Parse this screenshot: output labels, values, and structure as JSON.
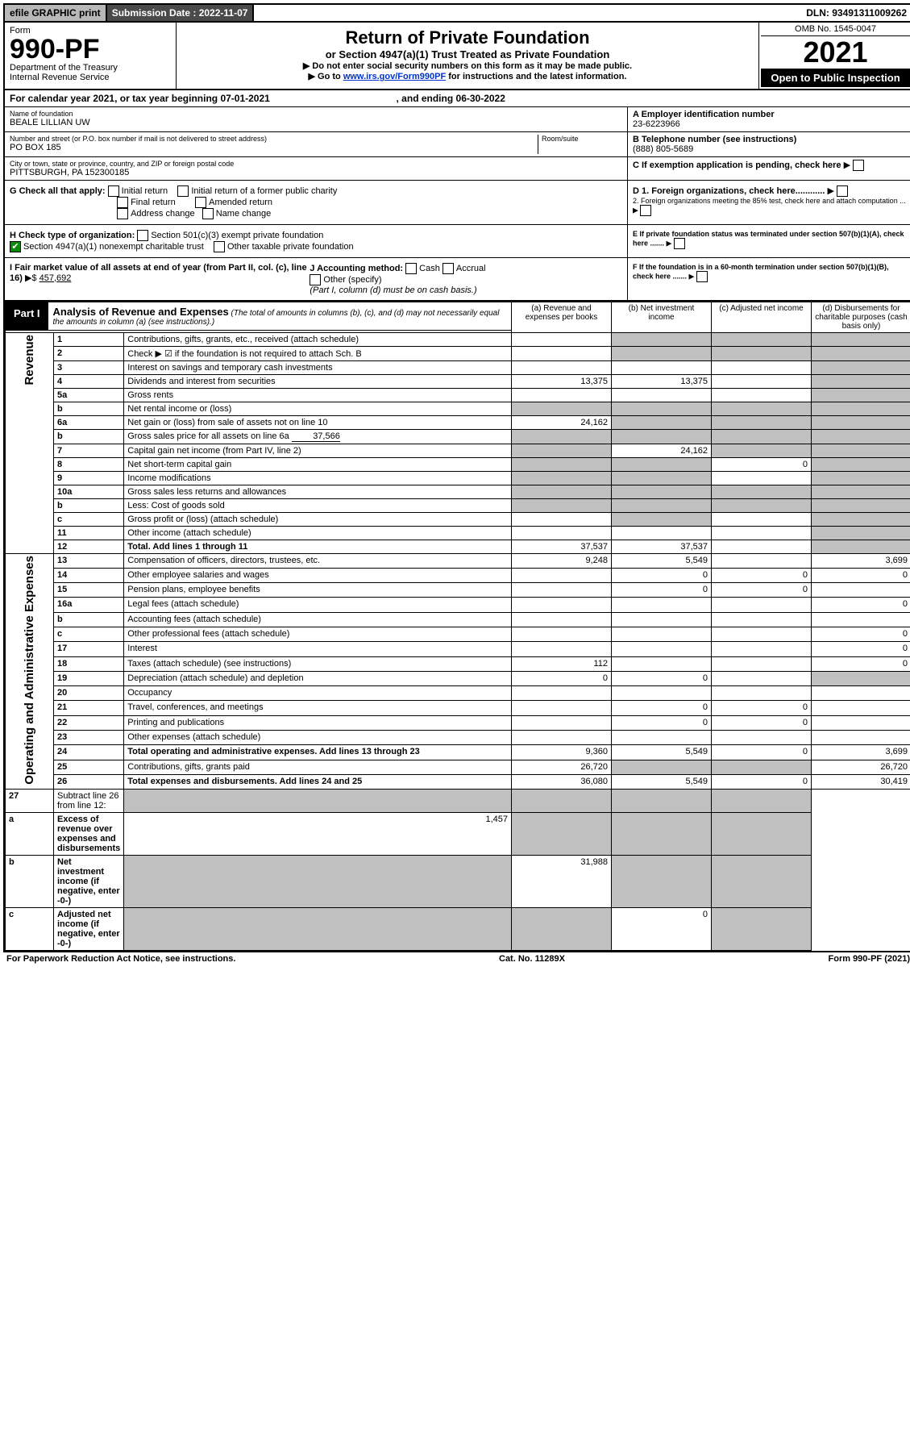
{
  "topbar": {
    "efile": "efile GRAPHIC print",
    "submission_label": "Submission Date : 2022-11-07",
    "dln": "DLN: 93491311009262"
  },
  "header": {
    "form_word": "Form",
    "form_no": "990-PF",
    "dept": "Department of the Treasury",
    "irs": "Internal Revenue Service",
    "title": "Return of Private Foundation",
    "subtitle": "or Section 4947(a)(1) Trust Treated as Private Foundation",
    "instr1": "▶ Do not enter social security numbers on this form as it may be made public.",
    "instr2_pre": "▶ Go to ",
    "instr2_link": "www.irs.gov/Form990PF",
    "instr2_post": " for instructions and the latest information.",
    "omb": "OMB No. 1545-0047",
    "year": "2021",
    "open": "Open to Public Inspection"
  },
  "calrow": {
    "text_a": "For calendar year 2021, or tax year beginning 07-01-2021",
    "text_b": ", and ending 06-30-2022"
  },
  "identity": {
    "name_label": "Name of foundation",
    "name": "BEALE LILLIAN UW",
    "ein_label": "A Employer identification number",
    "ein": "23-6223966",
    "addr_label": "Number and street (or P.O. box number if mail is not delivered to street address)",
    "addr": "PO BOX 185",
    "room_label": "Room/suite",
    "tel_label": "B Telephone number (see instructions)",
    "tel": "(888) 805-5689",
    "city_label": "City or town, state or province, country, and ZIP or foreign postal code",
    "city": "PITTSBURGH, PA  152300185",
    "c_label": "C If exemption application is pending, check here"
  },
  "checks": {
    "g_label": "G Check all that apply:",
    "initial": "Initial return",
    "initial_former": "Initial return of a former public charity",
    "final": "Final return",
    "amended": "Amended return",
    "address": "Address change",
    "namechg": "Name change",
    "h_label": "H Check type of organization:",
    "h_501c3": "Section 501(c)(3) exempt private foundation",
    "h_4947": "Section 4947(a)(1) nonexempt charitable trust",
    "h_other": "Other taxable private foundation",
    "i_label": "I Fair market value of all assets at end of year (from Part II, col. (c), line 16)",
    "i_value": "457,692",
    "j_label": "J Accounting method:",
    "j_cash": "Cash",
    "j_accrual": "Accrual",
    "j_other": "Other (specify)",
    "j_note": "(Part I, column (d) must be on cash basis.)",
    "d1": "D 1. Foreign organizations, check here............",
    "d2": "2. Foreign organizations meeting the 85% test, check here and attach computation ...",
    "e": "E  If private foundation status was terminated under section 507(b)(1)(A), check here .......",
    "f": "F  If the foundation is in a 60-month termination under section 507(b)(1)(B), check here .......",
    "arrow": "▶"
  },
  "part1": {
    "label": "Part I",
    "title": "Analysis of Revenue and Expenses",
    "desc": "(The total of amounts in columns (b), (c), and (d) may not necessarily equal the amounts in column (a) (see instructions).)",
    "col_a": "(a)   Revenue and expenses per books",
    "col_b": "(b)   Net investment income",
    "col_c": "(c)   Adjusted net income",
    "col_d": "(d)  Disbursements for charitable purposes (cash basis only)"
  },
  "sections": {
    "revenue": "Revenue",
    "opex": "Operating and Administrative Expenses"
  },
  "rows": [
    {
      "n": "1",
      "d": "Contributions, gifts, grants, etc., received (attach schedule)",
      "a": "",
      "b_s": 1,
      "c_s": 1,
      "d_s": 1
    },
    {
      "n": "2",
      "d": "Check ▶ ☑ if the foundation is not required to attach Sch. B",
      "bold_not": 1,
      "a": "",
      "b_s": 1,
      "c_s": 1,
      "d_s": 1
    },
    {
      "n": "3",
      "d": "Interest on savings and temporary cash investments",
      "a": "",
      "b": "",
      "c": "",
      "d_s": 1
    },
    {
      "n": "4",
      "d": "Dividends and interest from securities",
      "a": "13,375",
      "b": "13,375",
      "c": "",
      "d_s": 1
    },
    {
      "n": "5a",
      "d": "Gross rents",
      "a": "",
      "b": "",
      "c": "",
      "d_s": 1
    },
    {
      "n": "b",
      "d": "Net rental income or (loss)",
      "short": 1,
      "a_s": 1,
      "b_s": 1,
      "c_s": 1,
      "d_s": 1
    },
    {
      "n": "6a",
      "d": "Net gain or (loss) from sale of assets not on line 10",
      "a": "24,162",
      "b_s": 1,
      "c_s": 1,
      "d_s": 1
    },
    {
      "n": "b",
      "d": "Gross sales price for all assets on line 6a",
      "short": 1,
      "shortval": "37,566",
      "a_s": 1,
      "b_s": 1,
      "c_s": 1,
      "d_s": 1
    },
    {
      "n": "7",
      "d": "Capital gain net income (from Part IV, line 2)",
      "a_s": 1,
      "b": "24,162",
      "c_s": 1,
      "d_s": 1
    },
    {
      "n": "8",
      "d": "Net short-term capital gain",
      "a_s": 1,
      "b_s": 1,
      "c": "0",
      "d_s": 1
    },
    {
      "n": "9",
      "d": "Income modifications",
      "a_s": 1,
      "b_s": 1,
      "c": "",
      "d_s": 1
    },
    {
      "n": "10a",
      "d": "Gross sales less returns and allowances",
      "short": 1,
      "a_s": 1,
      "b_s": 1,
      "c_s": 1,
      "d_s": 1
    },
    {
      "n": "b",
      "d": "Less: Cost of goods sold",
      "short": 1,
      "a_s": 1,
      "b_s": 1,
      "c_s": 1,
      "d_s": 1
    },
    {
      "n": "c",
      "d": "Gross profit or (loss) (attach schedule)",
      "a": "",
      "b_s": 1,
      "c": "",
      "d_s": 1
    },
    {
      "n": "11",
      "d": "Other income (attach schedule)",
      "a": "",
      "b": "",
      "c": "",
      "d_s": 1
    },
    {
      "n": "12",
      "d": "Total. Add lines 1 through 11",
      "bold": 1,
      "a": "37,537",
      "b": "37,537",
      "c": "",
      "d_s": 1
    }
  ],
  "oprows": [
    {
      "n": "13",
      "d": "Compensation of officers, directors, trustees, etc.",
      "a": "9,248",
      "b": "5,549",
      "c": "",
      "dd": "3,699"
    },
    {
      "n": "14",
      "d": "Other employee salaries and wages",
      "a": "",
      "b": "0",
      "c": "0",
      "dd": "0"
    },
    {
      "n": "15",
      "d": "Pension plans, employee benefits",
      "a": "",
      "b": "0",
      "c": "0",
      "dd": ""
    },
    {
      "n": "16a",
      "d": "Legal fees (attach schedule)",
      "a": "",
      "b": "",
      "c": "",
      "dd": "0"
    },
    {
      "n": "b",
      "d": "Accounting fees (attach schedule)",
      "a": "",
      "b": "",
      "c": "",
      "dd": ""
    },
    {
      "n": "c",
      "d": "Other professional fees (attach schedule)",
      "a": "",
      "b": "",
      "c": "",
      "dd": "0"
    },
    {
      "n": "17",
      "d": "Interest",
      "a": "",
      "b": "",
      "c": "",
      "dd": "0"
    },
    {
      "n": "18",
      "d": "Taxes (attach schedule) (see instructions)",
      "a": "112",
      "b": "",
      "c": "",
      "dd": "0"
    },
    {
      "n": "19",
      "d": "Depreciation (attach schedule) and depletion",
      "a": "0",
      "b": "0",
      "c": "",
      "dd_s": 1
    },
    {
      "n": "20",
      "d": "Occupancy",
      "a": "",
      "b": "",
      "c": "",
      "dd": ""
    },
    {
      "n": "21",
      "d": "Travel, conferences, and meetings",
      "a": "",
      "b": "0",
      "c": "0",
      "dd": ""
    },
    {
      "n": "22",
      "d": "Printing and publications",
      "a": "",
      "b": "0",
      "c": "0",
      "dd": ""
    },
    {
      "n": "23",
      "d": "Other expenses (attach schedule)",
      "a": "",
      "b": "",
      "c": "",
      "dd": ""
    },
    {
      "n": "24",
      "d": "Total operating and administrative expenses. Add lines 13 through 23",
      "bold": 1,
      "a": "9,360",
      "b": "5,549",
      "c": "0",
      "dd": "3,699"
    },
    {
      "n": "25",
      "d": "Contributions, gifts, grants paid",
      "a": "26,720",
      "b_s": 1,
      "c_s": 1,
      "dd": "26,720"
    },
    {
      "n": "26",
      "d": "Total expenses and disbursements. Add lines 24 and 25",
      "bold": 1,
      "a": "36,080",
      "b": "5,549",
      "c": "0",
      "dd": "30,419"
    }
  ],
  "bottomrows": [
    {
      "n": "27",
      "d": "Subtract line 26 from line 12:",
      "a_s": 1,
      "b_s": 1,
      "c_s": 1,
      "dd_s": 1
    },
    {
      "n": "a",
      "d": "Excess of revenue over expenses and disbursements",
      "bold": 1,
      "a": "1,457",
      "b_s": 1,
      "c_s": 1,
      "dd_s": 1
    },
    {
      "n": "b",
      "d": "Net investment income (if negative, enter -0-)",
      "bold": 1,
      "a_s": 1,
      "b": "31,988",
      "c_s": 1,
      "dd_s": 1
    },
    {
      "n": "c",
      "d": "Adjusted net income (if negative, enter -0-)",
      "bold": 1,
      "a_s": 1,
      "b_s": 1,
      "c": "0",
      "dd_s": 1
    }
  ],
  "footer": {
    "left": "For Paperwork Reduction Act Notice, see instructions.",
    "mid": "Cat. No. 11289X",
    "right": "Form 990-PF (2021)"
  }
}
